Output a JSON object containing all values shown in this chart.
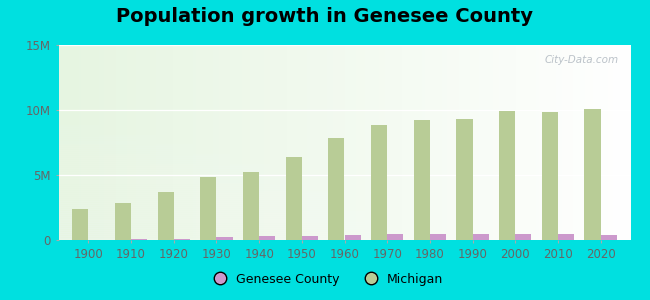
{
  "title": "Population growth in Genesee County",
  "years": [
    1900,
    1910,
    1920,
    1930,
    1940,
    1950,
    1960,
    1970,
    1980,
    1990,
    2000,
    2010,
    2020
  ],
  "michigan": [
    2420000,
    2810000,
    3668000,
    4842000,
    5256000,
    6372000,
    7823000,
    8875000,
    9262000,
    9295000,
    9938000,
    9884000,
    10077000
  ],
  "genesee": [
    36000,
    48000,
    91000,
    211000,
    270000,
    270000,
    374000,
    445000,
    450000,
    430000,
    436000,
    425000,
    406000
  ],
  "michigan_color": "#b8cc96",
  "genesee_color": "#cc99cc",
  "outer_bg": "#00e0e0",
  "ylim": [
    0,
    15000000
  ],
  "yticks": [
    0,
    5000000,
    10000000,
    15000000
  ],
  "ytick_labels": [
    "0",
    "5M",
    "10M",
    "15M"
  ],
  "watermark": "City-Data.com",
  "legend_genesee": "Genesee County",
  "legend_michigan": "Michigan",
  "bar_width": 0.38,
  "title_fontsize": 14
}
